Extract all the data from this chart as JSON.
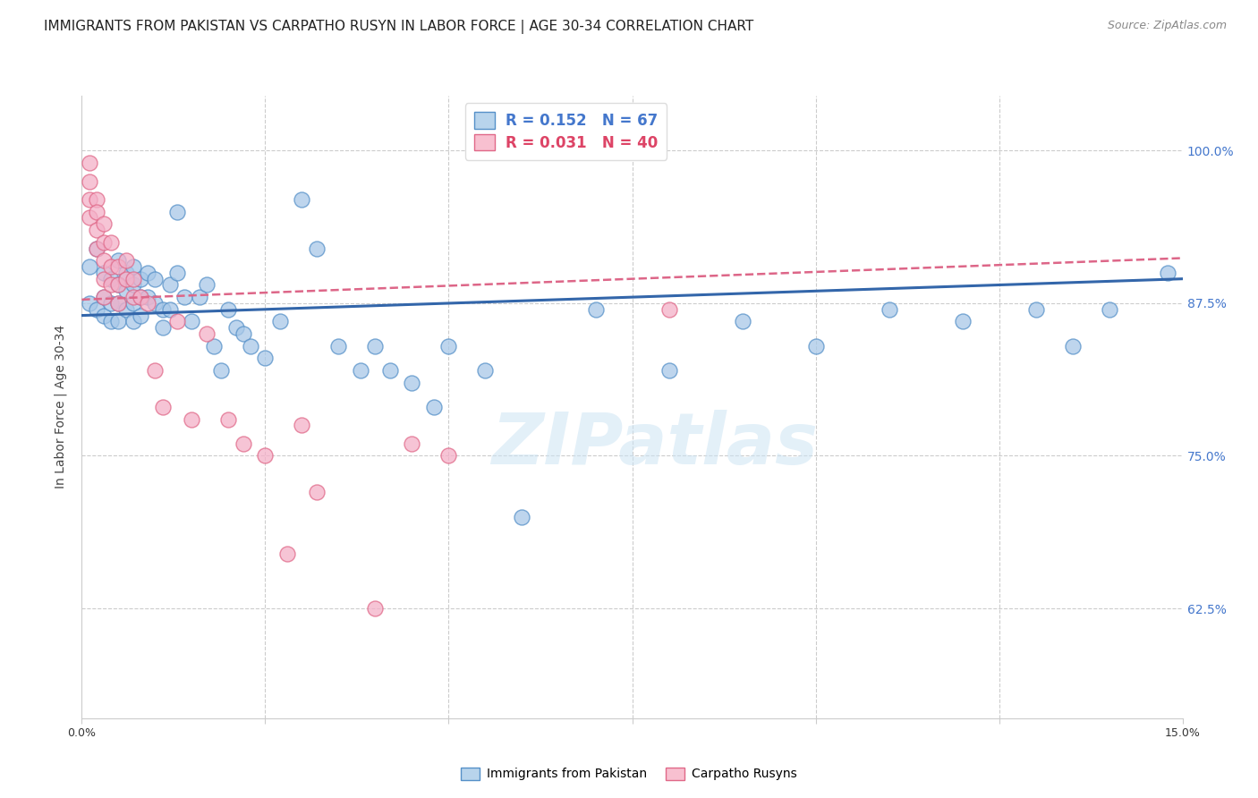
{
  "title": "IMMIGRANTS FROM PAKISTAN VS CARPATHO RUSYN IN LABOR FORCE | AGE 30-34 CORRELATION CHART",
  "source": "Source: ZipAtlas.com",
  "ylabel": "In Labor Force | Age 30-34",
  "ylabel_right_ticks": [
    "100.0%",
    "87.5%",
    "75.0%",
    "62.5%"
  ],
  "ylabel_right_vals": [
    1.0,
    0.875,
    0.75,
    0.625
  ],
  "xmin": 0.0,
  "xmax": 0.15,
  "ymin": 0.535,
  "ymax": 1.045,
  "blue_color": "#a8c8e8",
  "pink_color": "#f4b0c8",
  "blue_edge_color": "#5590c8",
  "pink_edge_color": "#e06888",
  "blue_line_color": "#3366aa",
  "pink_line_color": "#dd6688",
  "legend_blue_label": "R = 0.152   N = 67",
  "legend_pink_label": "R = 0.031   N = 40",
  "blue_scatter_x": [
    0.001,
    0.001,
    0.002,
    0.002,
    0.003,
    0.003,
    0.003,
    0.004,
    0.004,
    0.004,
    0.005,
    0.005,
    0.005,
    0.005,
    0.006,
    0.006,
    0.006,
    0.007,
    0.007,
    0.007,
    0.007,
    0.008,
    0.008,
    0.008,
    0.009,
    0.009,
    0.01,
    0.01,
    0.011,
    0.011,
    0.012,
    0.012,
    0.013,
    0.013,
    0.014,
    0.015,
    0.016,
    0.017,
    0.018,
    0.019,
    0.02,
    0.021,
    0.022,
    0.023,
    0.025,
    0.027,
    0.03,
    0.032,
    0.035,
    0.038,
    0.04,
    0.042,
    0.045,
    0.048,
    0.05,
    0.055,
    0.06,
    0.07,
    0.08,
    0.09,
    0.1,
    0.11,
    0.12,
    0.13,
    0.135,
    0.14,
    0.148
  ],
  "blue_scatter_y": [
    0.905,
    0.875,
    0.92,
    0.87,
    0.9,
    0.88,
    0.865,
    0.895,
    0.875,
    0.86,
    0.91,
    0.89,
    0.875,
    0.86,
    0.9,
    0.885,
    0.87,
    0.905,
    0.89,
    0.875,
    0.86,
    0.895,
    0.88,
    0.865,
    0.9,
    0.88,
    0.895,
    0.875,
    0.87,
    0.855,
    0.89,
    0.87,
    0.95,
    0.9,
    0.88,
    0.86,
    0.88,
    0.89,
    0.84,
    0.82,
    0.87,
    0.855,
    0.85,
    0.84,
    0.83,
    0.86,
    0.96,
    0.92,
    0.84,
    0.82,
    0.84,
    0.82,
    0.81,
    0.79,
    0.84,
    0.82,
    0.7,
    0.87,
    0.82,
    0.86,
    0.84,
    0.87,
    0.86,
    0.87,
    0.84,
    0.87,
    0.9
  ],
  "pink_scatter_x": [
    0.001,
    0.001,
    0.001,
    0.001,
    0.002,
    0.002,
    0.002,
    0.002,
    0.003,
    0.003,
    0.003,
    0.003,
    0.003,
    0.004,
    0.004,
    0.004,
    0.005,
    0.005,
    0.005,
    0.006,
    0.006,
    0.007,
    0.007,
    0.008,
    0.009,
    0.01,
    0.011,
    0.013,
    0.015,
    0.017,
    0.02,
    0.022,
    0.025,
    0.028,
    0.03,
    0.032,
    0.04,
    0.045,
    0.05,
    0.08
  ],
  "pink_scatter_y": [
    0.99,
    0.975,
    0.96,
    0.945,
    0.96,
    0.95,
    0.935,
    0.92,
    0.94,
    0.925,
    0.91,
    0.895,
    0.88,
    0.925,
    0.905,
    0.89,
    0.905,
    0.89,
    0.875,
    0.91,
    0.895,
    0.895,
    0.88,
    0.88,
    0.875,
    0.82,
    0.79,
    0.86,
    0.78,
    0.85,
    0.78,
    0.76,
    0.75,
    0.67,
    0.775,
    0.72,
    0.625,
    0.76,
    0.75,
    0.87
  ],
  "watermark": "ZIPatlas",
  "grid_color": "#cccccc",
  "background_color": "#ffffff",
  "title_fontsize": 11,
  "source_fontsize": 9,
  "axis_label_fontsize": 10,
  "tick_fontsize": 9,
  "bottom_legend_labels": [
    "Immigrants from Pakistan",
    "Carpatho Rusyns"
  ]
}
